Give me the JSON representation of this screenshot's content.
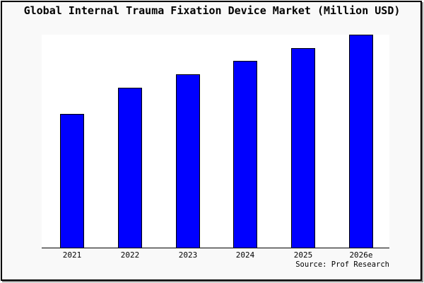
{
  "title": "Global Internal Trauma Fixation Device Market (Million USD)",
  "source_note": "Source: Prof Research",
  "colors": {
    "background": "#F9F9F9",
    "plot_background": "#FFFFFF",
    "bar_fill": "#0000FF",
    "bar_border": "#000000",
    "axis_line": "#000000",
    "frame_border": "#000000",
    "frame_shadow": "#8e8e8e",
    "text": "#000000"
  },
  "chart_data": {
    "type": "bar",
    "title": "Global Internal Trauma Fixation Device Market (Million USD)",
    "unit": "Million USD",
    "categories": [
      "2021",
      "2022",
      "2023",
      "2024",
      "2025",
      "2026e"
    ],
    "values": [
      62.7,
      75.1,
      81.4,
      87.7,
      93.5,
      100
    ],
    "values_note": "y-axis has no tick labels; values estimated as percent of tallest (2026e) bar height",
    "xlabel": "",
    "ylabel": "",
    "ylim": [
      0,
      100
    ],
    "grid": false,
    "legend": false,
    "source": "Source: Prof Research"
  }
}
